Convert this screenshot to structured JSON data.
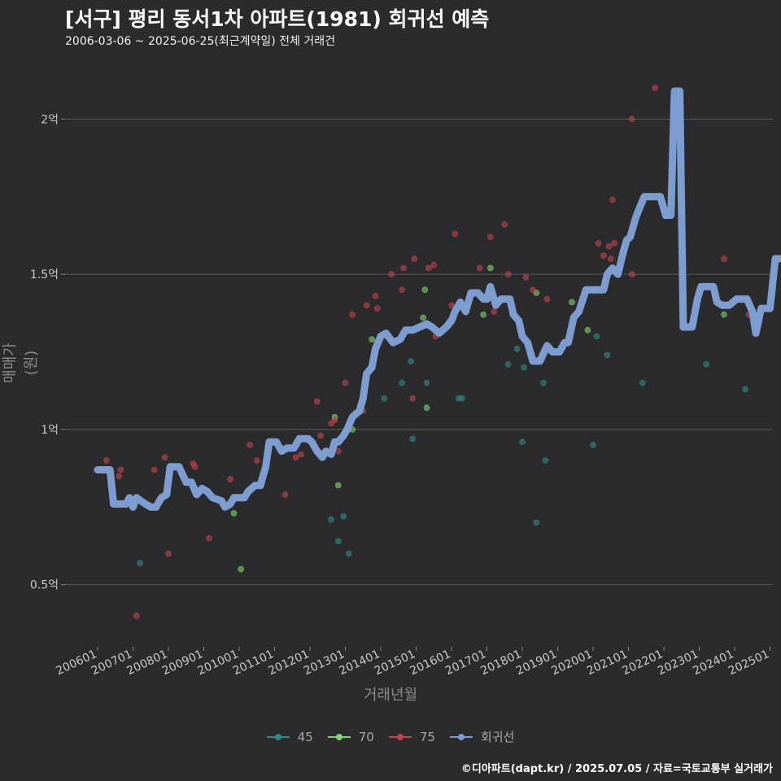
{
  "title": "[서구] 평리 동서1차 아파트(1981) 회귀선 예측",
  "subtitle": "2006-03-06 ~ 2025-06-25(최근계약일) 전체 거래건",
  "footer": "©디아파트(dapt.kr) / 2025.07.05 / 자료=국토교통부 실거래가",
  "chart_data": {
    "type": "scatter",
    "xlabel": "거래년월",
    "ylabel": "매매가(원)",
    "grid": "horizontal",
    "legend_position": "bottom",
    "x_ticks": [
      "200601",
      "200701",
      "200801",
      "200901",
      "201001",
      "201101",
      "201201",
      "201301",
      "201401",
      "201501",
      "201601",
      "201701",
      "201801",
      "201901",
      "202001",
      "202101",
      "202201",
      "202301",
      "202401",
      "202501"
    ],
    "y_ticks": [
      {
        "value": 0.5,
        "label": "0.5억"
      },
      {
        "value": 1,
        "label": "1억"
      },
      {
        "value": 1.5,
        "label": "1.5억"
      },
      {
        "value": 2,
        "label": "2억"
      }
    ],
    "xlim": [
      2006.0,
      2026.0
    ],
    "ylim": [
      0.3,
      2.2
    ],
    "y_unit": "억",
    "colors": {
      "45": "#2e8b86",
      "70": "#7fd66b",
      "75": "#c0444e",
      "회귀선": "#7d9ccf"
    },
    "series": [
      {
        "name": "45",
        "points": [
          [
            2007.2,
            0.57
          ],
          [
            2012.6,
            0.71
          ],
          [
            2012.8,
            0.64
          ],
          [
            2012.95,
            0.72
          ],
          [
            2013.1,
            0.6
          ],
          [
            2014.1,
            1.1
          ],
          [
            2014.6,
            1.15
          ],
          [
            2014.85,
            1.22
          ],
          [
            2014.9,
            0.97
          ],
          [
            2015.3,
            1.15
          ],
          [
            2016.2,
            1.1
          ],
          [
            2016.3,
            1.1
          ],
          [
            2017.6,
            1.21
          ],
          [
            2017.85,
            1.26
          ],
          [
            2018.0,
            0.96
          ],
          [
            2018.05,
            1.2
          ],
          [
            2018.4,
            0.7
          ],
          [
            2018.6,
            1.15
          ],
          [
            2018.65,
            0.9
          ],
          [
            2020.0,
            0.95
          ],
          [
            2020.1,
            1.3
          ],
          [
            2020.4,
            1.24
          ],
          [
            2021.4,
            1.15
          ],
          [
            2023.2,
            1.21
          ],
          [
            2024.3,
            1.13
          ]
        ]
      },
      {
        "name": "70",
        "points": [
          [
            2009.85,
            0.73
          ],
          [
            2010.05,
            0.55
          ],
          [
            2012.7,
            1.04
          ],
          [
            2012.8,
            0.82
          ],
          [
            2013.2,
            1.0
          ],
          [
            2013.75,
            1.29
          ],
          [
            2015.2,
            1.36
          ],
          [
            2015.25,
            1.45
          ],
          [
            2015.3,
            1.07
          ],
          [
            2016.9,
            1.37
          ],
          [
            2017.1,
            1.52
          ],
          [
            2018.4,
            1.44
          ],
          [
            2019.4,
            1.41
          ],
          [
            2019.85,
            1.32
          ],
          [
            2023.7,
            1.37
          ]
        ]
      },
      {
        "name": "75",
        "points": [
          [
            2006.25,
            0.9
          ],
          [
            2006.6,
            0.85
          ],
          [
            2006.65,
            0.87
          ],
          [
            2007.1,
            0.4
          ],
          [
            2007.6,
            0.87
          ],
          [
            2007.9,
            0.91
          ],
          [
            2008.0,
            0.6
          ],
          [
            2008.7,
            0.89
          ],
          [
            2008.75,
            0.88
          ],
          [
            2009.15,
            0.65
          ],
          [
            2009.75,
            0.84
          ],
          [
            2010.3,
            0.95
          ],
          [
            2010.5,
            0.9
          ],
          [
            2011.3,
            0.79
          ],
          [
            2011.6,
            0.91
          ],
          [
            2011.75,
            0.92
          ],
          [
            2012.2,
            1.09
          ],
          [
            2012.3,
            0.98
          ],
          [
            2012.6,
            1.02
          ],
          [
            2012.7,
            1.03
          ],
          [
            2012.8,
            0.93
          ],
          [
            2013.0,
            1.15
          ],
          [
            2013.2,
            1.37
          ],
          [
            2013.5,
            1.06
          ],
          [
            2013.6,
            1.4
          ],
          [
            2013.85,
            1.43
          ],
          [
            2013.9,
            1.39
          ],
          [
            2014.3,
            1.5
          ],
          [
            2014.6,
            1.45
          ],
          [
            2014.65,
            1.52
          ],
          [
            2014.9,
            1.1
          ],
          [
            2014.95,
            1.55
          ],
          [
            2015.35,
            1.52
          ],
          [
            2015.5,
            1.53
          ],
          [
            2015.55,
            1.3
          ],
          [
            2015.95,
            1.35
          ],
          [
            2016.0,
            1.4
          ],
          [
            2016.1,
            1.63
          ],
          [
            2016.8,
            1.52
          ],
          [
            2017.1,
            1.62
          ],
          [
            2017.2,
            1.38
          ],
          [
            2017.5,
            1.66
          ],
          [
            2017.6,
            1.5
          ],
          [
            2018.1,
            1.49
          ],
          [
            2018.3,
            1.45
          ],
          [
            2018.7,
            1.42
          ],
          [
            2020.15,
            1.6
          ],
          [
            2020.3,
            1.56
          ],
          [
            2020.45,
            1.59
          ],
          [
            2020.5,
            1.55
          ],
          [
            2020.55,
            1.74
          ],
          [
            2020.6,
            1.6
          ],
          [
            2021.1,
            2.0
          ],
          [
            2021.1,
            1.5
          ],
          [
            2021.75,
            2.1
          ],
          [
            2023.7,
            1.55
          ],
          [
            2024.4,
            1.37
          ]
        ]
      }
    ],
    "regression": {
      "name": "회귀선",
      "points": [
        [
          2006.0,
          0.87
        ],
        [
          2006.35,
          0.87
        ],
        [
          2006.45,
          0.76
        ],
        [
          2006.8,
          0.76
        ],
        [
          2006.9,
          0.78
        ],
        [
          2007.0,
          0.75
        ],
        [
          2007.1,
          0.78
        ],
        [
          2007.35,
          0.76
        ],
        [
          2007.5,
          0.75
        ],
        [
          2007.65,
          0.75
        ],
        [
          2007.8,
          0.78
        ],
        [
          2007.95,
          0.79
        ],
        [
          2008.05,
          0.88
        ],
        [
          2008.3,
          0.88
        ],
        [
          2008.5,
          0.83
        ],
        [
          2008.65,
          0.83
        ],
        [
          2008.8,
          0.79
        ],
        [
          2008.95,
          0.81
        ],
        [
          2009.1,
          0.8
        ],
        [
          2009.25,
          0.78
        ],
        [
          2009.5,
          0.77
        ],
        [
          2009.6,
          0.75
        ],
        [
          2009.75,
          0.76
        ],
        [
          2009.85,
          0.78
        ],
        [
          2010.15,
          0.78
        ],
        [
          2010.25,
          0.8
        ],
        [
          2010.45,
          0.82
        ],
        [
          2010.6,
          0.82
        ],
        [
          2010.75,
          0.88
        ],
        [
          2010.85,
          0.96
        ],
        [
          2011.05,
          0.96
        ],
        [
          2011.2,
          0.93
        ],
        [
          2011.35,
          0.94
        ],
        [
          2011.55,
          0.94
        ],
        [
          2011.7,
          0.97
        ],
        [
          2011.95,
          0.97
        ],
        [
          2012.05,
          0.96
        ],
        [
          2012.2,
          0.93
        ],
        [
          2012.35,
          0.91
        ],
        [
          2012.45,
          0.93
        ],
        [
          2012.6,
          0.92
        ],
        [
          2012.7,
          0.96
        ],
        [
          2012.8,
          0.96
        ],
        [
          2012.95,
          0.98
        ],
        [
          2013.05,
          1.0
        ],
        [
          2013.2,
          1.04
        ],
        [
          2013.4,
          1.06
        ],
        [
          2013.5,
          1.1
        ],
        [
          2013.6,
          1.18
        ],
        [
          2013.75,
          1.2
        ],
        [
          2013.85,
          1.26
        ],
        [
          2014.0,
          1.3
        ],
        [
          2014.15,
          1.31
        ],
        [
          2014.35,
          1.28
        ],
        [
          2014.55,
          1.29
        ],
        [
          2014.7,
          1.32
        ],
        [
          2014.9,
          1.32
        ],
        [
          2015.1,
          1.33
        ],
        [
          2015.3,
          1.34
        ],
        [
          2015.45,
          1.33
        ],
        [
          2015.65,
          1.31
        ],
        [
          2015.85,
          1.33
        ],
        [
          2016.0,
          1.35
        ],
        [
          2016.1,
          1.38
        ],
        [
          2016.25,
          1.41
        ],
        [
          2016.4,
          1.38
        ],
        [
          2016.55,
          1.44
        ],
        [
          2016.75,
          1.44
        ],
        [
          2016.9,
          1.42
        ],
        [
          2017.0,
          1.42
        ],
        [
          2017.1,
          1.46
        ],
        [
          2017.25,
          1.4
        ],
        [
          2017.4,
          1.42
        ],
        [
          2017.65,
          1.42
        ],
        [
          2017.75,
          1.37
        ],
        [
          2017.9,
          1.35
        ],
        [
          2018.0,
          1.3
        ],
        [
          2018.15,
          1.28
        ],
        [
          2018.3,
          1.22
        ],
        [
          2018.5,
          1.22
        ],
        [
          2018.7,
          1.27
        ],
        [
          2018.85,
          1.25
        ],
        [
          2019.05,
          1.25
        ],
        [
          2019.2,
          1.28
        ],
        [
          2019.3,
          1.28
        ],
        [
          2019.45,
          1.36
        ],
        [
          2019.6,
          1.38
        ],
        [
          2019.8,
          1.45
        ],
        [
          2020.1,
          1.45
        ],
        [
          2020.3,
          1.45
        ],
        [
          2020.4,
          1.5
        ],
        [
          2020.55,
          1.52
        ],
        [
          2020.7,
          1.5
        ],
        [
          2020.85,
          1.57
        ],
        [
          2020.95,
          1.61
        ],
        [
          2021.05,
          1.62
        ],
        [
          2021.2,
          1.68
        ],
        [
          2021.3,
          1.71
        ],
        [
          2021.45,
          1.75
        ],
        [
          2021.6,
          1.75
        ],
        [
          2021.9,
          1.75
        ],
        [
          2022.05,
          1.69
        ],
        [
          2022.2,
          1.69
        ],
        [
          2022.3,
          2.09
        ],
        [
          2022.45,
          2.09
        ],
        [
          2022.55,
          1.33
        ],
        [
          2022.8,
          1.33
        ],
        [
          2022.95,
          1.42
        ],
        [
          2023.05,
          1.46
        ],
        [
          2023.4,
          1.46
        ],
        [
          2023.5,
          1.41
        ],
        [
          2023.65,
          1.4
        ],
        [
          2023.85,
          1.4
        ],
        [
          2024.05,
          1.42
        ],
        [
          2024.35,
          1.42
        ],
        [
          2024.5,
          1.38
        ],
        [
          2024.6,
          1.31
        ],
        [
          2024.75,
          1.39
        ],
        [
          2025.0,
          1.39
        ],
        [
          2025.15,
          1.55
        ],
        [
          2025.5,
          1.55
        ]
      ]
    },
    "legend": [
      "45",
      "70",
      "75",
      "회귀선"
    ]
  }
}
